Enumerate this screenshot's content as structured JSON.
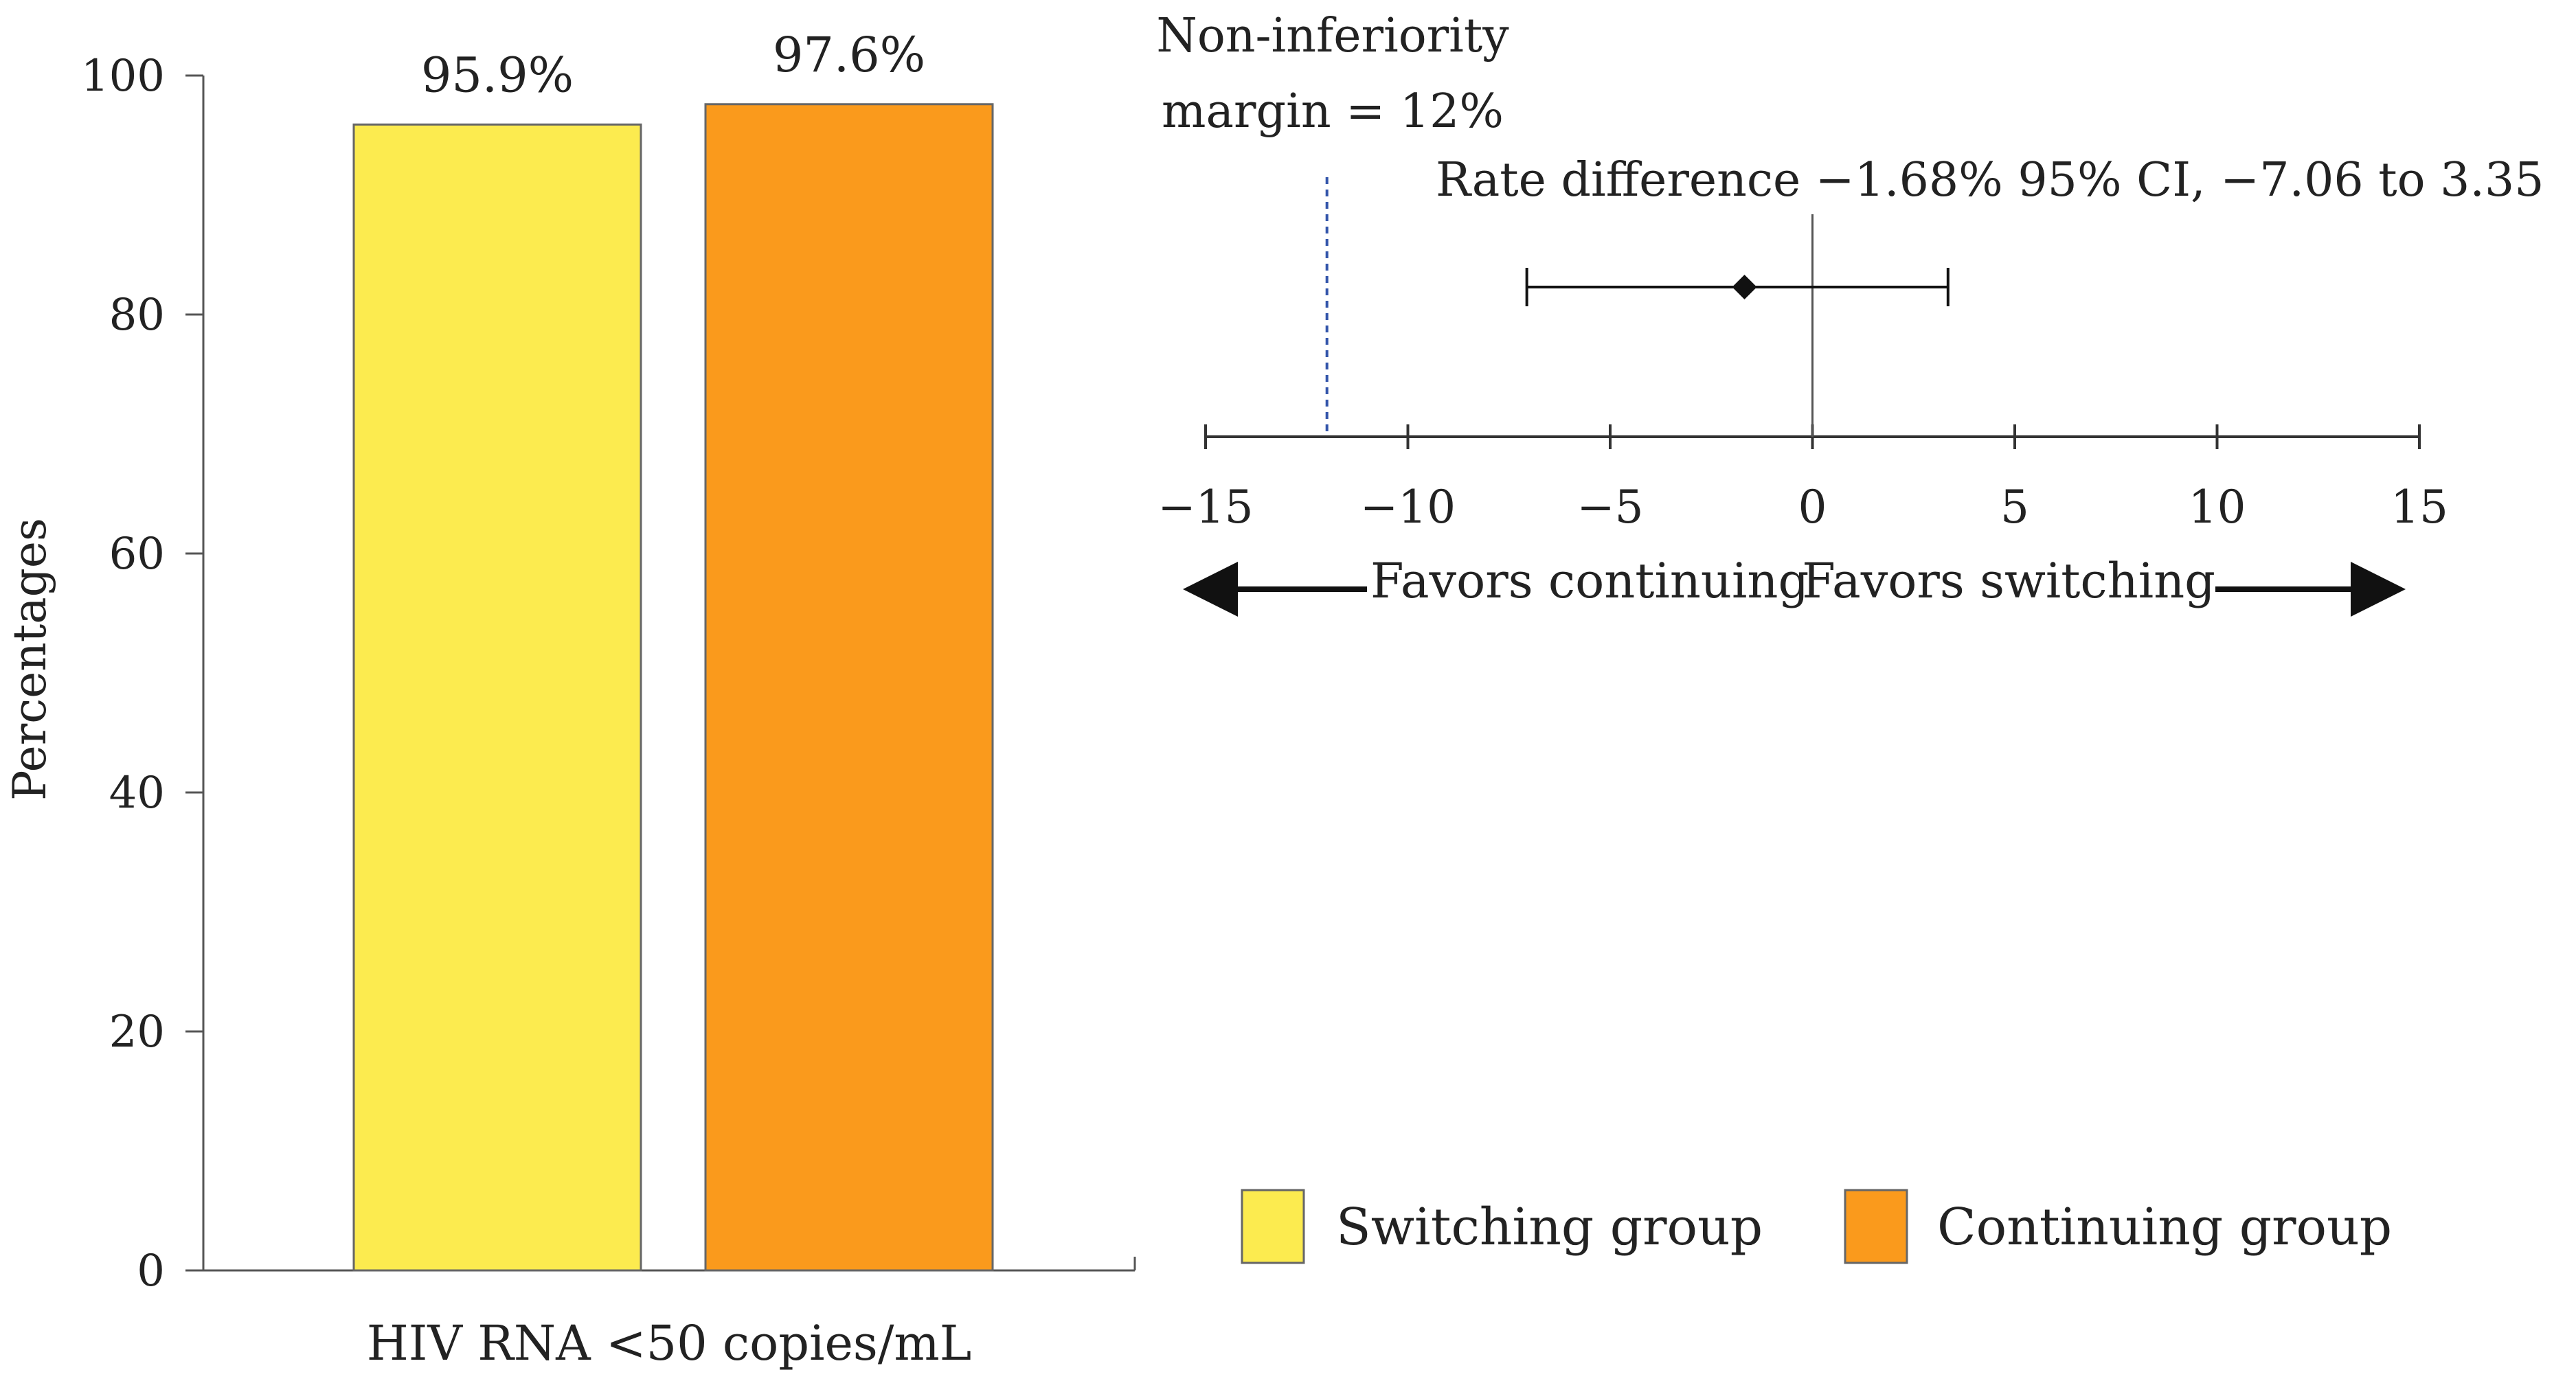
{
  "chart_data": [
    {
      "type": "bar",
      "categories": [
        "HIV RNA <50 copies/mL"
      ],
      "series": [
        {
          "name": "Switching group",
          "values": [
            95.9
          ],
          "label": "95.9%",
          "color": "#FCEB4F"
        },
        {
          "name": "Continuing group",
          "values": [
            97.6
          ],
          "label": "97.6%",
          "color": "#FA9A1C"
        }
      ],
      "title": "",
      "xlabel": "HIV RNA <50 copies/mL",
      "ylabel": "Percentages",
      "ylim": [
        0,
        100
      ],
      "yticks": [
        0,
        20,
        40,
        60,
        80,
        100
      ],
      "legend": {
        "placement": "bottom-right",
        "entries": [
          "Switching group",
          "Continuing group"
        ]
      }
    },
    {
      "type": "forest",
      "estimate": -1.68,
      "ci": [
        -7.06,
        3.35
      ],
      "estimate_label": "Rate difference −1.68% 95% CI, −7.06 to 3.35",
      "margin": -12,
      "margin_label": [
        "Non-inferiority",
        "margin = 12%"
      ],
      "xlim": [
        -15,
        15
      ],
      "xticks": [
        -15,
        -10,
        -5,
        0,
        5,
        10,
        15
      ],
      "xtick_labels": [
        "−15",
        "−10",
        "−5",
        "0",
        "5",
        "10",
        "15"
      ],
      "left_label": "Favors continuing",
      "right_label": "Favors switching"
    }
  ],
  "colors": {
    "axis": "#555555",
    "text": "#222222",
    "margin_line": "#3355AA"
  }
}
